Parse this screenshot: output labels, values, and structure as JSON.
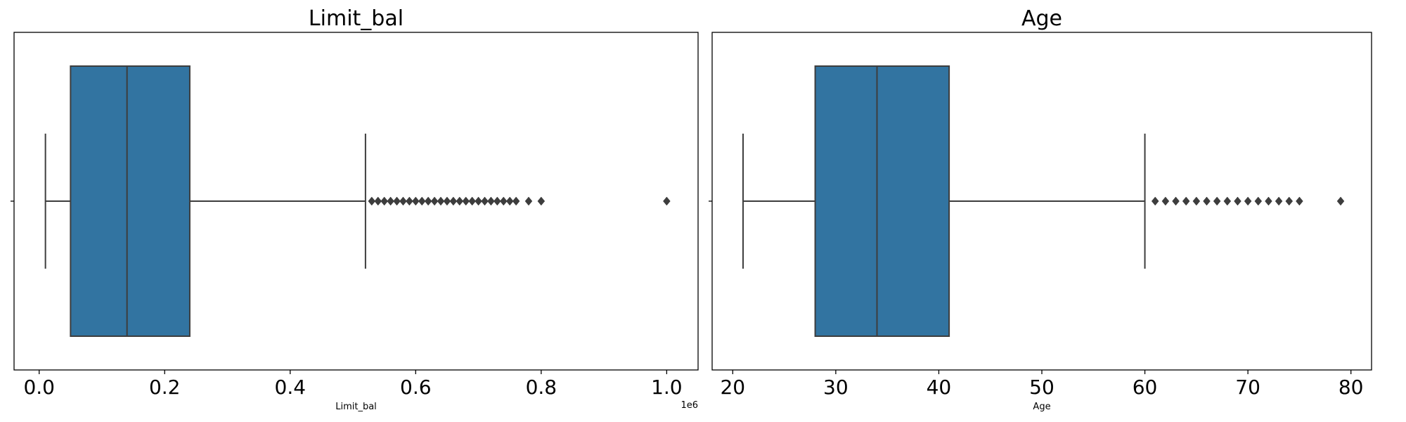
{
  "colors": {
    "box_fill": "#3274a1",
    "line": "#3d3d3d",
    "frame": "#000000"
  },
  "chart_data": [
    {
      "type": "boxplot",
      "title": "Limit_bal",
      "xlabel": "Limit_bal",
      "ylabel": "",
      "xlim": [
        -40000,
        1050000
      ],
      "x_ticks": [
        0,
        200000,
        400000,
        600000,
        800000,
        1000000
      ],
      "x_tick_labels": [
        "0.0",
        "0.2",
        "0.4",
        "0.6",
        "0.8",
        "1.0"
      ],
      "offset_text": "1e6",
      "grid": false,
      "box": {
        "whisker_low": 10000,
        "q1": 50000,
        "median": 140000,
        "q3": 240000,
        "whisker_high": 520000
      },
      "outliers": [
        530000,
        540000,
        550000,
        560000,
        570000,
        580000,
        590000,
        600000,
        610000,
        620000,
        630000,
        640000,
        650000,
        660000,
        670000,
        680000,
        690000,
        700000,
        710000,
        720000,
        730000,
        740000,
        750000,
        760000,
        780000,
        800000,
        1000000
      ]
    },
    {
      "type": "boxplot",
      "title": "Age",
      "xlabel": "Age",
      "ylabel": "",
      "xlim": [
        18,
        82
      ],
      "x_ticks": [
        20,
        30,
        40,
        50,
        60,
        70,
        80
      ],
      "x_tick_labels": [
        "20",
        "30",
        "40",
        "50",
        "60",
        "70",
        "80"
      ],
      "offset_text": "",
      "grid": false,
      "box": {
        "whisker_low": 21,
        "q1": 28,
        "median": 34,
        "q3": 41,
        "whisker_high": 60
      },
      "outliers": [
        61,
        62,
        63,
        64,
        65,
        66,
        67,
        68,
        69,
        70,
        71,
        72,
        73,
        74,
        75,
        79
      ]
    }
  ]
}
